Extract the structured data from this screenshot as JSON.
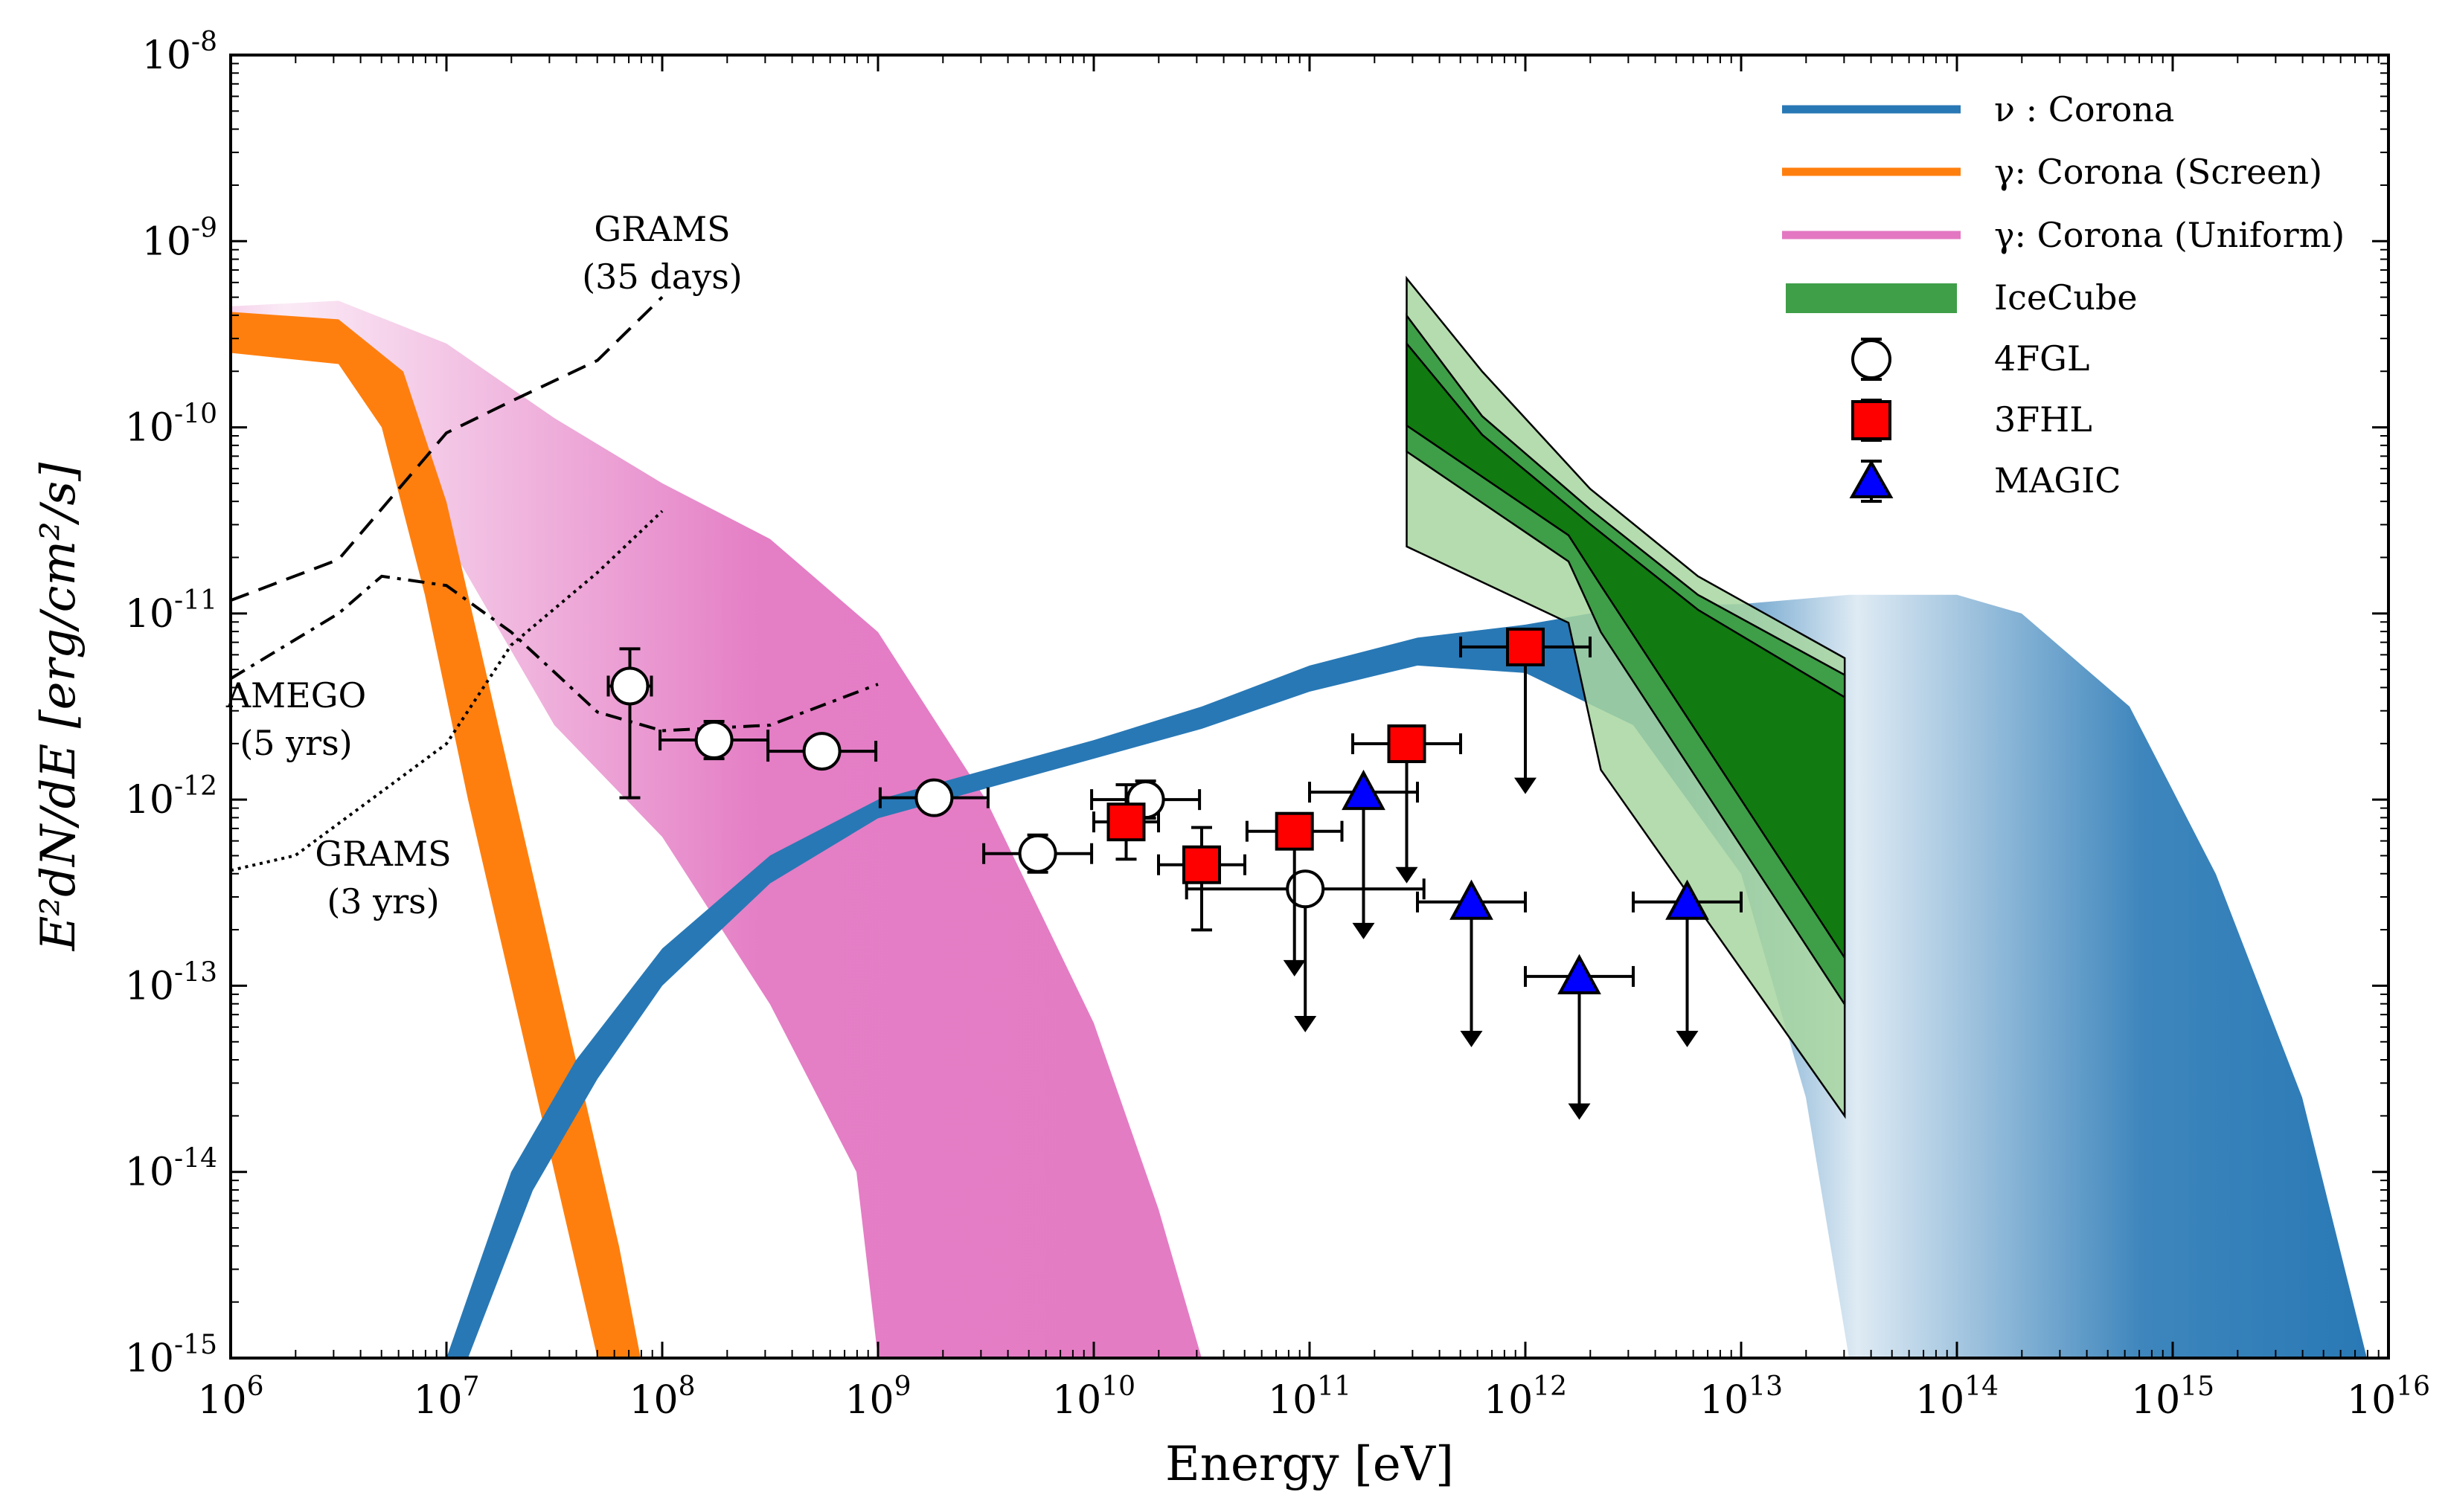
{
  "chart_data": {
    "type": "line",
    "xscale": "log",
    "yscale": "log",
    "xlim_exp": [
      6,
      16
    ],
    "ylim_exp": [
      -15,
      -8
    ],
    "xlabel": "Energy [eV]",
    "ylabel": "E²dN/dE [erg/cm²/s]",
    "x_tick_exponents": [
      "6",
      "7",
      "8",
      "9",
      "10",
      "11",
      "12",
      "13",
      "14",
      "15",
      "16"
    ],
    "y_tick_exponents": [
      "-15",
      "-14",
      "-13",
      "-12",
      "-11",
      "-10",
      "-9",
      "-8"
    ],
    "tick_base": "10",
    "legend": {
      "position": "top-right",
      "entries": [
        {
          "key": "nu_corona",
          "label": "ν : Corona"
        },
        {
          "key": "gamma_screen",
          "label": "γ: Corona (Screen)"
        },
        {
          "key": "gamma_uniform",
          "label": "γ: Corona (Uniform)"
        },
        {
          "key": "icecube",
          "label": "IceCube"
        },
        {
          "key": "fgl4",
          "label": "4FGL"
        },
        {
          "key": "fhl3",
          "label": "3FHL"
        },
        {
          "key": "magic",
          "label": "MAGIC"
        }
      ]
    },
    "colors": {
      "nu_corona": "#2878b5",
      "gamma_screen": "#ff7f0e",
      "gamma_uniform": "#e377c2",
      "icecube_dark": "#117a11",
      "icecube_mid": "#3f9e48",
      "icecube_light": "#a8d6a0",
      "fhl3": "#ff0000",
      "magic": "#0000ff"
    },
    "bands": {
      "nu_corona": {
        "upper": [
          [
            7.0,
            -15.0
          ],
          [
            7.3,
            -14.0
          ],
          [
            7.6,
            -13.4
          ],
          [
            8.0,
            -12.8
          ],
          [
            8.5,
            -12.3
          ],
          [
            9.0,
            -12.0
          ],
          [
            10.0,
            -11.68
          ],
          [
            10.5,
            -11.5
          ],
          [
            11.0,
            -11.28
          ],
          [
            11.5,
            -11.13
          ],
          [
            12.0,
            -11.06
          ],
          [
            12.5,
            -10.96
          ],
          [
            13.0,
            -10.95
          ],
          [
            13.5,
            -10.9
          ],
          [
            14.0,
            -10.9
          ],
          [
            14.3,
            -11.0
          ],
          [
            14.8,
            -11.5
          ],
          [
            15.2,
            -12.4
          ],
          [
            15.6,
            -13.6
          ],
          [
            15.9,
            -15.0
          ]
        ],
        "lower": [
          [
            7.1,
            -15.0
          ],
          [
            7.4,
            -14.1
          ],
          [
            7.7,
            -13.5
          ],
          [
            8.0,
            -13.0
          ],
          [
            8.5,
            -12.45
          ],
          [
            9.0,
            -12.1
          ],
          [
            10.0,
            -11.78
          ],
          [
            10.5,
            -11.62
          ],
          [
            11.0,
            -11.42
          ],
          [
            11.5,
            -11.28
          ],
          [
            12.0,
            -11.32
          ],
          [
            12.5,
            -11.6
          ],
          [
            13.0,
            -12.4
          ],
          [
            13.3,
            -13.6
          ],
          [
            13.5,
            -15.0
          ]
        ]
      },
      "gamma_screen": {
        "upper": [
          [
            6.0,
            -9.38
          ],
          [
            6.5,
            -9.42
          ],
          [
            6.8,
            -9.7
          ],
          [
            7.0,
            -10.4
          ],
          [
            7.2,
            -11.4
          ],
          [
            7.4,
            -12.4
          ],
          [
            7.6,
            -13.4
          ],
          [
            7.8,
            -14.4
          ],
          [
            7.9,
            -15.0
          ]
        ],
        "lower": [
          [
            6.0,
            -9.6
          ],
          [
            6.5,
            -9.66
          ],
          [
            6.7,
            -10.0
          ],
          [
            6.9,
            -10.9
          ],
          [
            7.1,
            -12.0
          ],
          [
            7.3,
            -13.0
          ],
          [
            7.5,
            -14.0
          ],
          [
            7.7,
            -15.0
          ]
        ]
      },
      "gamma_uniform": {
        "upper": [
          [
            6.0,
            -9.35
          ],
          [
            6.5,
            -9.32
          ],
          [
            7.0,
            -9.55
          ],
          [
            7.5,
            -9.95
          ],
          [
            8.0,
            -10.3
          ],
          [
            8.5,
            -10.6
          ],
          [
            9.0,
            -11.1
          ],
          [
            9.5,
            -12.0
          ],
          [
            10.0,
            -13.2
          ],
          [
            10.3,
            -14.2
          ],
          [
            10.5,
            -15.0
          ]
        ],
        "lower": [
          [
            6.0,
            -9.45
          ],
          [
            6.5,
            -9.55
          ],
          [
            7.0,
            -10.6
          ],
          [
            7.5,
            -11.6
          ],
          [
            8.0,
            -12.2
          ],
          [
            8.5,
            -13.1
          ],
          [
            8.9,
            -14.0
          ],
          [
            9.0,
            -15.0
          ]
        ]
      }
    },
    "icecube": {
      "x_range_exp": [
        11.45,
        13.48
      ],
      "outer": {
        "upper": [
          [
            11.45,
            -9.2
          ],
          [
            11.8,
            -9.7
          ],
          [
            12.3,
            -10.33
          ],
          [
            12.8,
            -10.8
          ],
          [
            13.48,
            -11.24
          ]
        ],
        "lower": [
          [
            11.45,
            -10.64
          ],
          [
            12.2,
            -11.05
          ],
          [
            12.35,
            -11.84
          ],
          [
            13.48,
            -13.7
          ]
        ]
      },
      "middle": {
        "upper": [
          [
            11.45,
            -9.4
          ],
          [
            11.8,
            -9.94
          ],
          [
            12.3,
            -10.44
          ],
          [
            12.8,
            -10.9
          ],
          [
            13.48,
            -11.33
          ]
        ],
        "lower": [
          [
            11.45,
            -10.13
          ],
          [
            12.2,
            -10.72
          ],
          [
            12.35,
            -11.1
          ],
          [
            13.48,
            -13.1
          ]
        ]
      },
      "inner": {
        "upper": [
          [
            11.45,
            -9.55
          ],
          [
            11.8,
            -10.04
          ],
          [
            12.3,
            -10.52
          ],
          [
            12.8,
            -10.98
          ],
          [
            13.48,
            -11.45
          ]
        ],
        "lower": [
          [
            11.45,
            -9.99
          ],
          [
            12.2,
            -10.58
          ],
          [
            12.35,
            -10.85
          ],
          [
            13.48,
            -12.85
          ]
        ]
      }
    },
    "sensitivity_curves": [
      {
        "name": "GRAMS (35 days)",
        "style": "dashed",
        "points": [
          [
            6.0,
            -10.93
          ],
          [
            6.5,
            -10.71
          ],
          [
            7.0,
            -10.03
          ],
          [
            7.3,
            -9.86
          ],
          [
            7.7,
            -9.64
          ],
          [
            8.0,
            -9.3
          ]
        ]
      },
      {
        "name": "AMEGO (5 yrs)",
        "style": "dashdot",
        "points": [
          [
            6.0,
            -11.35
          ],
          [
            6.5,
            -11.0
          ],
          [
            6.7,
            -10.8
          ],
          [
            7.0,
            -10.85
          ],
          [
            7.3,
            -11.1
          ],
          [
            7.7,
            -11.53
          ],
          [
            8.0,
            -11.63
          ],
          [
            8.5,
            -11.6
          ],
          [
            9.0,
            -11.38
          ]
        ]
      },
      {
        "name": "GRAMS (3 yrs)",
        "style": "dotted",
        "points": [
          [
            6.0,
            -12.38
          ],
          [
            6.3,
            -12.3
          ],
          [
            7.0,
            -11.7
          ],
          [
            7.3,
            -11.17
          ],
          [
            7.7,
            -10.78
          ],
          [
            8.0,
            -10.45
          ]
        ]
      }
    ],
    "annotations": [
      {
        "key": "grams35",
        "lines": [
          "GRAMS",
          "(35 days)"
        ]
      },
      {
        "key": "amego",
        "lines": [
          "AMEGO",
          "(5 yrs)"
        ]
      },
      {
        "key": "grams3",
        "lines": [
          "GRAMS",
          "(3 yrs)"
        ]
      }
    ],
    "series": [
      {
        "name": "4FGL",
        "marker": "circle",
        "points": [
          {
            "x": 7.85,
            "y": -11.39,
            "xerr": [
              0.1,
              0.1
            ],
            "yerr": [
              0.6,
              0.2
            ]
          },
          {
            "x": 8.24,
            "y": -11.68,
            "xerr": [
              0.25,
              0.25
            ],
            "yerr": [
              0.1,
              0.1
            ]
          },
          {
            "x": 8.74,
            "y": -11.74,
            "xerr": [
              0.25,
              0.25
            ],
            "yerr": [
              0.05,
              0.05
            ]
          },
          {
            "x": 9.26,
            "y": -11.99,
            "xerr": [
              0.25,
              0.25
            ],
            "yerr": [
              0.05,
              0.05
            ]
          },
          {
            "x": 9.74,
            "y": -12.29,
            "xerr": [
              0.25,
              0.25
            ],
            "yerr": [
              0.1,
              0.1
            ]
          },
          {
            "x": 10.24,
            "y": -12.0,
            "xerr": [
              0.25,
              0.25
            ],
            "yerr": [
              0.1,
              0.1
            ]
          },
          {
            "x": 10.98,
            "y": -12.48,
            "xerr": [
              0.55,
              0.55
            ],
            "upper_limit_to": -13.25
          }
        ]
      },
      {
        "name": "3FHL",
        "marker": "square",
        "points": [
          {
            "x": 10.15,
            "y": -12.12,
            "xerr": [
              0.15,
              0.15
            ],
            "yerr": [
              0.2,
              0.2
            ]
          },
          {
            "x": 10.5,
            "y": -12.35,
            "xerr": [
              0.2,
              0.2
            ],
            "yerr": [
              0.35,
              0.2
            ]
          },
          {
            "x": 10.93,
            "y": -12.17,
            "xerr": [
              0.22,
              0.22
            ],
            "upper_limit_to": -12.95
          },
          {
            "x": 11.45,
            "y": -11.7,
            "xerr": [
              0.25,
              0.25
            ],
            "upper_limit_to": -12.45
          },
          {
            "x": 12.0,
            "y": -11.18,
            "xerr": [
              0.3,
              0.3
            ],
            "upper_limit_to": -11.97
          }
        ]
      },
      {
        "name": "MAGIC",
        "marker": "triangle",
        "points": [
          {
            "x": 11.25,
            "y": -11.96,
            "xerr": [
              0.25,
              0.25
            ],
            "upper_limit_to": -12.75
          },
          {
            "x": 11.75,
            "y": -12.55,
            "xerr": [
              0.25,
              0.25
            ],
            "upper_limit_to": -13.33
          },
          {
            "x": 12.25,
            "y": -12.95,
            "xerr": [
              0.25,
              0.25
            ],
            "upper_limit_to": -13.72
          },
          {
            "x": 12.75,
            "y": -12.55,
            "xerr": [
              0.25,
              0.25
            ],
            "upper_limit_to": -13.33
          }
        ]
      }
    ]
  }
}
